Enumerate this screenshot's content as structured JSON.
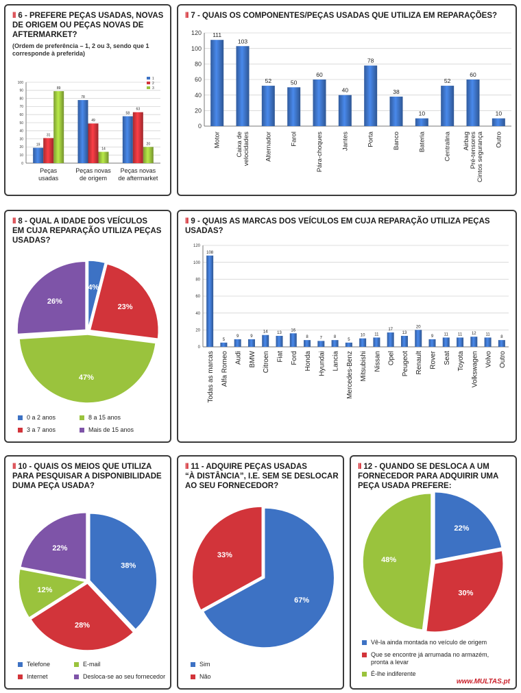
{
  "colors": {
    "blue": "#3d72c4",
    "red": "#d2343a",
    "green": "#9ac33d",
    "purple": "#7e54a8",
    "title_mark": "#d2232a"
  },
  "footer": {
    "logo_text": "www.MULTAS.pt"
  },
  "panels": {
    "p6": {
      "mark": "II",
      "title_lines": [
        "6 - PREFERE PEÇAS USADAS, NOVAS",
        "DE ORIGEM OU PEÇAS NOVAS DE",
        "AFTERMARKET?"
      ],
      "sub_lines": [
        "(Ordem de preferência – 1, 2 ou 3, sendo que 1",
        "corresponde à preferida)"
      ]
    },
    "p7": {
      "mark": "II",
      "title_lines": [
        "7 - QUAIS OS COMPONENTES/PEÇAS USADAS QUE UTILIZA EM REPARAÇÕES?"
      ]
    },
    "p8": {
      "mark": "II",
      "title_lines": [
        "8 - QUAL A IDADE DOS VEÍCULOS",
        "EM CUJA REPARAÇÃO UTILIZA PEÇAS",
        "USADAS?"
      ]
    },
    "p9": {
      "mark": "II",
      "title_lines": [
        "9 - QUAIS AS MARCAS DOS VEÍCULOS EM CUJA REPARAÇÃO UTILIZA PEÇAS USADAS?"
      ]
    },
    "p10": {
      "mark": "II",
      "title_lines": [
        "10 - QUAIS OS MEIOS QUE UTILIZA",
        "PARA PESQUISAR A DISPONIBILIDADE",
        "DUMA PEÇA USADA?"
      ]
    },
    "p11": {
      "mark": "II",
      "title_lines": [
        "11 - ADQUIRE PEÇAS USADAS",
        "“À DISTÂNCIA”, I.E. SEM SE DESLOCAR",
        "AO SEU FORNECEDOR?"
      ]
    },
    "p12": {
      "mark": "II",
      "title_lines": [
        "12 - QUANDO SE DESLOCA A UM",
        "FORNECEDOR PARA ADQUIRIR UMA",
        "PEÇA USADA PREFERE:"
      ]
    }
  },
  "chart_data": [
    {
      "id": "q6",
      "type": "bar",
      "categories": [
        [
          "Peças",
          "usadas"
        ],
        [
          "Peças novas",
          "de origem"
        ],
        [
          "Peças novas",
          "de aftermarket"
        ]
      ],
      "series": [
        {
          "name": "1",
          "color": "#3d72c4",
          "values": [
            19,
            78,
            58
          ]
        },
        {
          "name": "2",
          "color": "#d2343a",
          "values": [
            31,
            49,
            63
          ]
        },
        {
          "name": "3",
          "color": "#9ac33d",
          "values": [
            89,
            14,
            20
          ]
        }
      ],
      "ylim": [
        0,
        100
      ],
      "yticks": [
        0,
        10,
        20,
        30,
        40,
        50,
        60,
        70,
        80,
        90,
        100
      ],
      "legend": "top-right",
      "grid": true
    },
    {
      "id": "q7",
      "type": "bar",
      "categories": [
        [
          "Motor"
        ],
        [
          "Caixa de",
          "velocidades"
        ],
        [
          "Alternador"
        ],
        [
          "Farol"
        ],
        [
          "Pára-choques"
        ],
        [
          "Jantes"
        ],
        [
          "Porta"
        ],
        [
          "Banco"
        ],
        [
          "Bateria"
        ],
        [
          "Centralina"
        ],
        [
          "Airbag",
          "Pré-tensores",
          "Cintos segurança"
        ],
        [
          "Outro"
        ]
      ],
      "values": [
        111,
        103,
        52,
        50,
        60,
        40,
        78,
        38,
        10,
        52,
        60,
        10
      ],
      "ylim": [
        0,
        120
      ],
      "yticks": [
        0,
        20,
        40,
        60,
        80,
        100,
        120
      ],
      "grid": true
    },
    {
      "id": "q8",
      "type": "pie",
      "labels": [
        "0 a 2 anos",
        "3 a 7 anos",
        "8 a 15 anos",
        "Mais de 15 anos"
      ],
      "values": [
        4,
        23,
        47,
        26
      ],
      "value_labels": [
        "4%",
        "23%",
        "47%",
        "26%"
      ],
      "colors": [
        "#3d72c4",
        "#d2343a",
        "#9ac33d",
        "#7e54a8"
      ]
    },
    {
      "id": "q9",
      "type": "bar",
      "categories": [
        "Todas as marcas",
        "Alfa Romeo",
        "Audi",
        "BMW",
        "Citroen",
        "Fiat",
        "Ford",
        "Honda",
        "Hyundai",
        "Lancia",
        "Mercedes-Benz",
        "Mitsubishi",
        "Nissan",
        "Opel",
        "Peugeot",
        "Renault",
        "Rover",
        "Seat",
        "Toyota",
        "Volkswagen",
        "Volvo",
        "Outro"
      ],
      "values": [
        108,
        5,
        9,
        9,
        14,
        13,
        16,
        8,
        7,
        8,
        5,
        10,
        11,
        17,
        13,
        20,
        9,
        11,
        11,
        12,
        11,
        8
      ],
      "ylim": [
        0,
        120
      ],
      "yticks": [
        0,
        20,
        40,
        60,
        80,
        100,
        120
      ],
      "grid": true
    },
    {
      "id": "q10",
      "type": "pie",
      "labels": [
        "Telefone",
        "Internet",
        "E-mail",
        "Desloca-se ao seu fornecedor"
      ],
      "values": [
        38,
        28,
        12,
        22
      ],
      "value_labels": [
        "38%",
        "28%",
        "12%",
        "22%"
      ],
      "colors": [
        "#3d72c4",
        "#d2343a",
        "#9ac33d",
        "#7e54a8"
      ]
    },
    {
      "id": "q11",
      "type": "pie",
      "labels": [
        "Sim",
        "Não"
      ],
      "values": [
        67,
        33
      ],
      "value_labels": [
        "67%",
        "33%"
      ],
      "colors": [
        "#3d72c4",
        "#d2343a"
      ]
    },
    {
      "id": "q12",
      "type": "pie",
      "labels": [
        "Vê-la ainda montada no veículo de origem",
        "Que se encontre já arrumada no armazém, pronta a levar",
        "É-lhe indiferente"
      ],
      "values": [
        22,
        30,
        48
      ],
      "value_labels": [
        "22%",
        "30%",
        "48%"
      ],
      "colors": [
        "#3d72c4",
        "#d2343a",
        "#9ac33d"
      ]
    }
  ]
}
